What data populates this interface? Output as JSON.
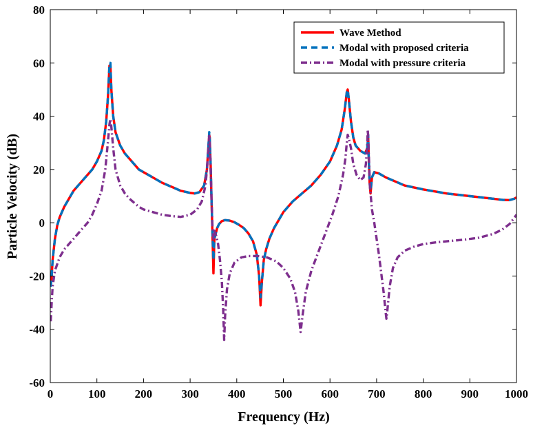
{
  "chart_data": {
    "type": "line",
    "xlabel": "Frequency (Hz)",
    "ylabel": "Particle Velocity (dB)",
    "xlim": [
      0,
      1000
    ],
    "ylim": [
      -60,
      80
    ],
    "xticks": [
      0,
      100,
      200,
      300,
      400,
      500,
      600,
      700,
      800,
      900,
      1000
    ],
    "yticks": [
      -60,
      -40,
      -20,
      0,
      20,
      40,
      60,
      80
    ],
    "grid": false,
    "legend_position": "top-right",
    "series": [
      {
        "name": "Wave Method",
        "color": "#ff0000",
        "style": "solid",
        "points": [
          [
            1,
            -24
          ],
          [
            3,
            -20
          ],
          [
            5,
            -14
          ],
          [
            10,
            -6
          ],
          [
            15,
            -1
          ],
          [
            20,
            2
          ],
          [
            30,
            6
          ],
          [
            40,
            9
          ],
          [
            50,
            12
          ],
          [
            60,
            14
          ],
          [
            70,
            16
          ],
          [
            80,
            18
          ],
          [
            90,
            20
          ],
          [
            100,
            23
          ],
          [
            110,
            27
          ],
          [
            115,
            31
          ],
          [
            120,
            38
          ],
          [
            124,
            48
          ],
          [
            127,
            59
          ],
          [
            129,
            59
          ],
          [
            131,
            50
          ],
          [
            135,
            40
          ],
          [
            140,
            34
          ],
          [
            150,
            29
          ],
          [
            160,
            26
          ],
          [
            170,
            24
          ],
          [
            180,
            22
          ],
          [
            190,
            20
          ],
          [
            200,
            19
          ],
          [
            220,
            17
          ],
          [
            240,
            15
          ],
          [
            260,
            13.5
          ],
          [
            280,
            12
          ],
          [
            300,
            11.2
          ],
          [
            310,
            11
          ],
          [
            320,
            11.5
          ],
          [
            330,
            14
          ],
          [
            336,
            20
          ],
          [
            339,
            28
          ],
          [
            341,
            33
          ],
          [
            342,
            32
          ],
          [
            344,
            22
          ],
          [
            346,
            8
          ],
          [
            348,
            -5
          ],
          [
            350,
            -19
          ],
          [
            352,
            -6
          ],
          [
            355,
            -4
          ],
          [
            358,
            -2
          ],
          [
            362,
            -0.5
          ],
          [
            368,
            0.6
          ],
          [
            375,
            1
          ],
          [
            385,
            0.8
          ],
          [
            395,
            0.2
          ],
          [
            405,
            -0.8
          ],
          [
            415,
            -2
          ],
          [
            425,
            -4
          ],
          [
            435,
            -7
          ],
          [
            443,
            -12
          ],
          [
            448,
            -20
          ],
          [
            451,
            -31
          ],
          [
            454,
            -22
          ],
          [
            458,
            -14
          ],
          [
            463,
            -10
          ],
          [
            470,
            -6
          ],
          [
            480,
            -2
          ],
          [
            490,
            1
          ],
          [
            500,
            4
          ],
          [
            520,
            8
          ],
          [
            540,
            11
          ],
          [
            560,
            14
          ],
          [
            580,
            18
          ],
          [
            600,
            23
          ],
          [
            615,
            29
          ],
          [
            625,
            35
          ],
          [
            632,
            43
          ],
          [
            636,
            49
          ],
          [
            638,
            50
          ],
          [
            640,
            47
          ],
          [
            645,
            38
          ],
          [
            650,
            32
          ],
          [
            655,
            29
          ],
          [
            665,
            27
          ],
          [
            675,
            26
          ],
          [
            680,
            28
          ],
          [
            682,
            32
          ],
          [
            683,
            25
          ],
          [
            685,
            15
          ],
          [
            687,
            11
          ],
          [
            690,
            17
          ],
          [
            695,
            19
          ],
          [
            705,
            18.5
          ],
          [
            720,
            17
          ],
          [
            760,
            14
          ],
          [
            800,
            12.5
          ],
          [
            850,
            11
          ],
          [
            900,
            10
          ],
          [
            950,
            9
          ],
          [
            970,
            8.6
          ],
          [
            985,
            8.5
          ],
          [
            995,
            9
          ],
          [
            1000,
            9.5
          ]
        ]
      },
      {
        "name": "Modal with proposed criteria",
        "color": "#0072bd",
        "style": "dashed",
        "points": [
          [
            1,
            -24
          ],
          [
            3,
            -20
          ],
          [
            5,
            -14
          ],
          [
            10,
            -6
          ],
          [
            15,
            -1
          ],
          [
            20,
            2
          ],
          [
            30,
            6
          ],
          [
            40,
            9
          ],
          [
            50,
            12
          ],
          [
            60,
            14
          ],
          [
            70,
            16
          ],
          [
            80,
            18
          ],
          [
            90,
            20
          ],
          [
            100,
            23
          ],
          [
            110,
            27
          ],
          [
            115,
            31
          ],
          [
            120,
            38
          ],
          [
            124,
            48
          ],
          [
            127,
            60
          ],
          [
            129,
            60
          ],
          [
            131,
            50
          ],
          [
            135,
            40
          ],
          [
            140,
            34
          ],
          [
            150,
            29
          ],
          [
            160,
            26
          ],
          [
            170,
            24
          ],
          [
            180,
            22
          ],
          [
            190,
            20
          ],
          [
            200,
            19
          ],
          [
            220,
            17
          ],
          [
            240,
            15
          ],
          [
            260,
            13.5
          ],
          [
            280,
            12
          ],
          [
            300,
            11.2
          ],
          [
            310,
            11
          ],
          [
            320,
            11.5
          ],
          [
            330,
            14
          ],
          [
            336,
            20
          ],
          [
            339,
            28
          ],
          [
            341,
            34
          ],
          [
            342,
            32
          ],
          [
            344,
            22
          ],
          [
            346,
            8
          ],
          [
            348,
            -4
          ],
          [
            350,
            -14
          ],
          [
            352,
            -6
          ],
          [
            355,
            -4
          ],
          [
            358,
            -2
          ],
          [
            362,
            -0.5
          ],
          [
            368,
            0.6
          ],
          [
            375,
            1
          ],
          [
            385,
            0.8
          ],
          [
            395,
            0.2
          ],
          [
            405,
            -0.8
          ],
          [
            415,
            -2
          ],
          [
            425,
            -4
          ],
          [
            435,
            -7
          ],
          [
            443,
            -12
          ],
          [
            448,
            -20
          ],
          [
            451,
            -28
          ],
          [
            454,
            -22
          ],
          [
            458,
            -14
          ],
          [
            463,
            -10
          ],
          [
            470,
            -6
          ],
          [
            480,
            -2
          ],
          [
            490,
            1
          ],
          [
            500,
            4
          ],
          [
            520,
            8
          ],
          [
            540,
            11
          ],
          [
            560,
            14
          ],
          [
            580,
            18
          ],
          [
            600,
            23
          ],
          [
            615,
            29
          ],
          [
            625,
            35
          ],
          [
            632,
            43
          ],
          [
            636,
            49
          ],
          [
            638,
            50
          ],
          [
            640,
            47
          ],
          [
            645,
            38
          ],
          [
            650,
            32
          ],
          [
            655,
            29
          ],
          [
            665,
            27
          ],
          [
            675,
            26
          ],
          [
            680,
            28
          ],
          [
            682,
            33
          ],
          [
            683,
            25
          ],
          [
            685,
            15
          ],
          [
            687,
            12
          ],
          [
            690,
            17
          ],
          [
            695,
            19
          ],
          [
            705,
            18.5
          ],
          [
            720,
            17
          ],
          [
            760,
            14
          ],
          [
            800,
            12.5
          ],
          [
            850,
            11
          ],
          [
            900,
            10
          ],
          [
            950,
            9
          ],
          [
            970,
            8.6
          ],
          [
            985,
            8.5
          ],
          [
            995,
            9
          ],
          [
            1000,
            9.5
          ]
        ]
      },
      {
        "name": "Modal with pressure criteria",
        "color": "#7e2f8e",
        "style": "dashdot",
        "points": [
          [
            1,
            -37
          ],
          [
            3,
            -30
          ],
          [
            5,
            -24
          ],
          [
            10,
            -18
          ],
          [
            20,
            -13
          ],
          [
            30,
            -10
          ],
          [
            40,
            -8
          ],
          [
            50,
            -6
          ],
          [
            60,
            -4
          ],
          [
            70,
            -2
          ],
          [
            80,
            0
          ],
          [
            90,
            3
          ],
          [
            100,
            7
          ],
          [
            110,
            12
          ],
          [
            118,
            20
          ],
          [
            124,
            31
          ],
          [
            127,
            37
          ],
          [
            129,
            39
          ],
          [
            131,
            36
          ],
          [
            135,
            28
          ],
          [
            140,
            20
          ],
          [
            150,
            14
          ],
          [
            160,
            11
          ],
          [
            170,
            9
          ],
          [
            180,
            7.5
          ],
          [
            190,
            6
          ],
          [
            200,
            5
          ],
          [
            220,
            4
          ],
          [
            240,
            3
          ],
          [
            260,
            2.5
          ],
          [
            280,
            2.2
          ],
          [
            300,
            3
          ],
          [
            315,
            5
          ],
          [
            325,
            8
          ],
          [
            333,
            14
          ],
          [
            337,
            22
          ],
          [
            340,
            30
          ],
          [
            341,
            33
          ],
          [
            342,
            31
          ],
          [
            344,
            20
          ],
          [
            346,
            8
          ],
          [
            348,
            -2
          ],
          [
            350,
            -6
          ],
          [
            352,
            -3
          ],
          [
            356,
            -5
          ],
          [
            360,
            -8
          ],
          [
            364,
            -14
          ],
          [
            368,
            -22
          ],
          [
            371,
            -33
          ],
          [
            373,
            -44
          ],
          [
            375,
            -35
          ],
          [
            379,
            -25
          ],
          [
            385,
            -19
          ],
          [
            395,
            -15
          ],
          [
            410,
            -13
          ],
          [
            425,
            -12.5
          ],
          [
            445,
            -12.5
          ],
          [
            465,
            -13
          ],
          [
            485,
            -14.5
          ],
          [
            500,
            -17
          ],
          [
            515,
            -21
          ],
          [
            525,
            -26
          ],
          [
            532,
            -33
          ],
          [
            537,
            -41
          ],
          [
            541,
            -35
          ],
          [
            548,
            -26
          ],
          [
            560,
            -18
          ],
          [
            575,
            -11
          ],
          [
            590,
            -4
          ],
          [
            605,
            3
          ],
          [
            618,
            10
          ],
          [
            628,
            18
          ],
          [
            633,
            24
          ],
          [
            636,
            30
          ],
          [
            638,
            33
          ],
          [
            640,
            32
          ],
          [
            645,
            28
          ],
          [
            650,
            22
          ],
          [
            657,
            18
          ],
          [
            665,
            16
          ],
          [
            672,
            17
          ],
          [
            677,
            22
          ],
          [
            680,
            30
          ],
          [
            681,
            35
          ],
          [
            682,
            32
          ],
          [
            684,
            22
          ],
          [
            686,
            13
          ],
          [
            690,
            5
          ],
          [
            695,
            0
          ],
          [
            700,
            -6
          ],
          [
            705,
            -12
          ],
          [
            710,
            -19
          ],
          [
            715,
            -26
          ],
          [
            719,
            -33
          ],
          [
            721,
            -36
          ],
          [
            723,
            -33
          ],
          [
            728,
            -24
          ],
          [
            735,
            -17
          ],
          [
            745,
            -13
          ],
          [
            760,
            -10.5
          ],
          [
            780,
            -9
          ],
          [
            800,
            -8
          ],
          [
            830,
            -7.3
          ],
          [
            860,
            -6.8
          ],
          [
            890,
            -6.3
          ],
          [
            920,
            -5.6
          ],
          [
            950,
            -4.2
          ],
          [
            970,
            -2.5
          ],
          [
            985,
            -0.5
          ],
          [
            995,
            1.8
          ],
          [
            1000,
            3
          ]
        ]
      }
    ]
  }
}
